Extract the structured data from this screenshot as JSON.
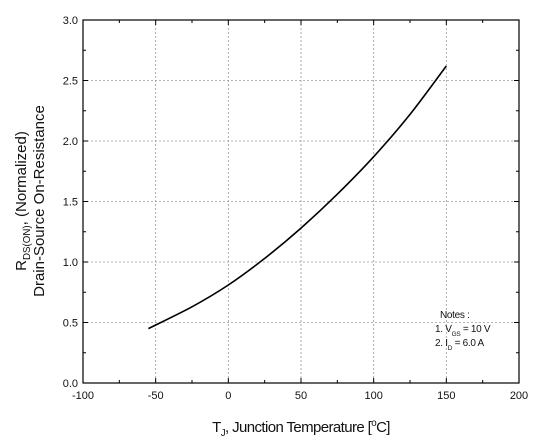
{
  "chart_data": {
    "type": "line",
    "title": "",
    "xlabel": {
      "parts": [
        {
          "t": "T"
        },
        {
          "t": "J",
          "sub": true
        },
        {
          "t": ", Junction Temperature ["
        },
        {
          "t": "o",
          "sup": true
        },
        {
          "t": "C]"
        }
      ]
    },
    "ylabel": {
      "line1": [
        {
          "t": "R"
        },
        {
          "t": "DS(ON)",
          "sub": true
        },
        {
          "t": ", (Normalized)"
        }
      ],
      "line2": "Drain-Source On-Resistance"
    },
    "xlim": [
      -100,
      200
    ],
    "ylim": [
      0.0,
      3.0
    ],
    "xticks": [
      -100,
      -50,
      0,
      50,
      100,
      150,
      200
    ],
    "xtick_labels": [
      "-100",
      "-50",
      "0",
      "50",
      "100",
      "150",
      "200"
    ],
    "yticks": [
      0.0,
      0.5,
      1.0,
      1.5,
      2.0,
      2.5,
      3.0
    ],
    "ytick_labels": [
      "0.0",
      "0.5",
      "1.0",
      "1.5",
      "2.0",
      "2.5",
      "3.0"
    ],
    "grid": true,
    "series": [
      {
        "x": [
          -55,
          -25,
          0,
          25,
          50,
          75,
          100,
          125,
          150
        ],
        "y": [
          0.45,
          0.63,
          0.81,
          1.03,
          1.28,
          1.56,
          1.87,
          2.22,
          2.62
        ]
      }
    ],
    "notes": {
      "title": "Notes :",
      "line1": [
        {
          "t": "1. V"
        },
        {
          "t": "GS",
          "sub": true
        },
        {
          "t": " = 10 V"
        }
      ],
      "line2": [
        {
          "t": "2. I"
        },
        {
          "t": "D",
          "sub": true
        },
        {
          "t": " = 6.0 A"
        }
      ]
    }
  }
}
